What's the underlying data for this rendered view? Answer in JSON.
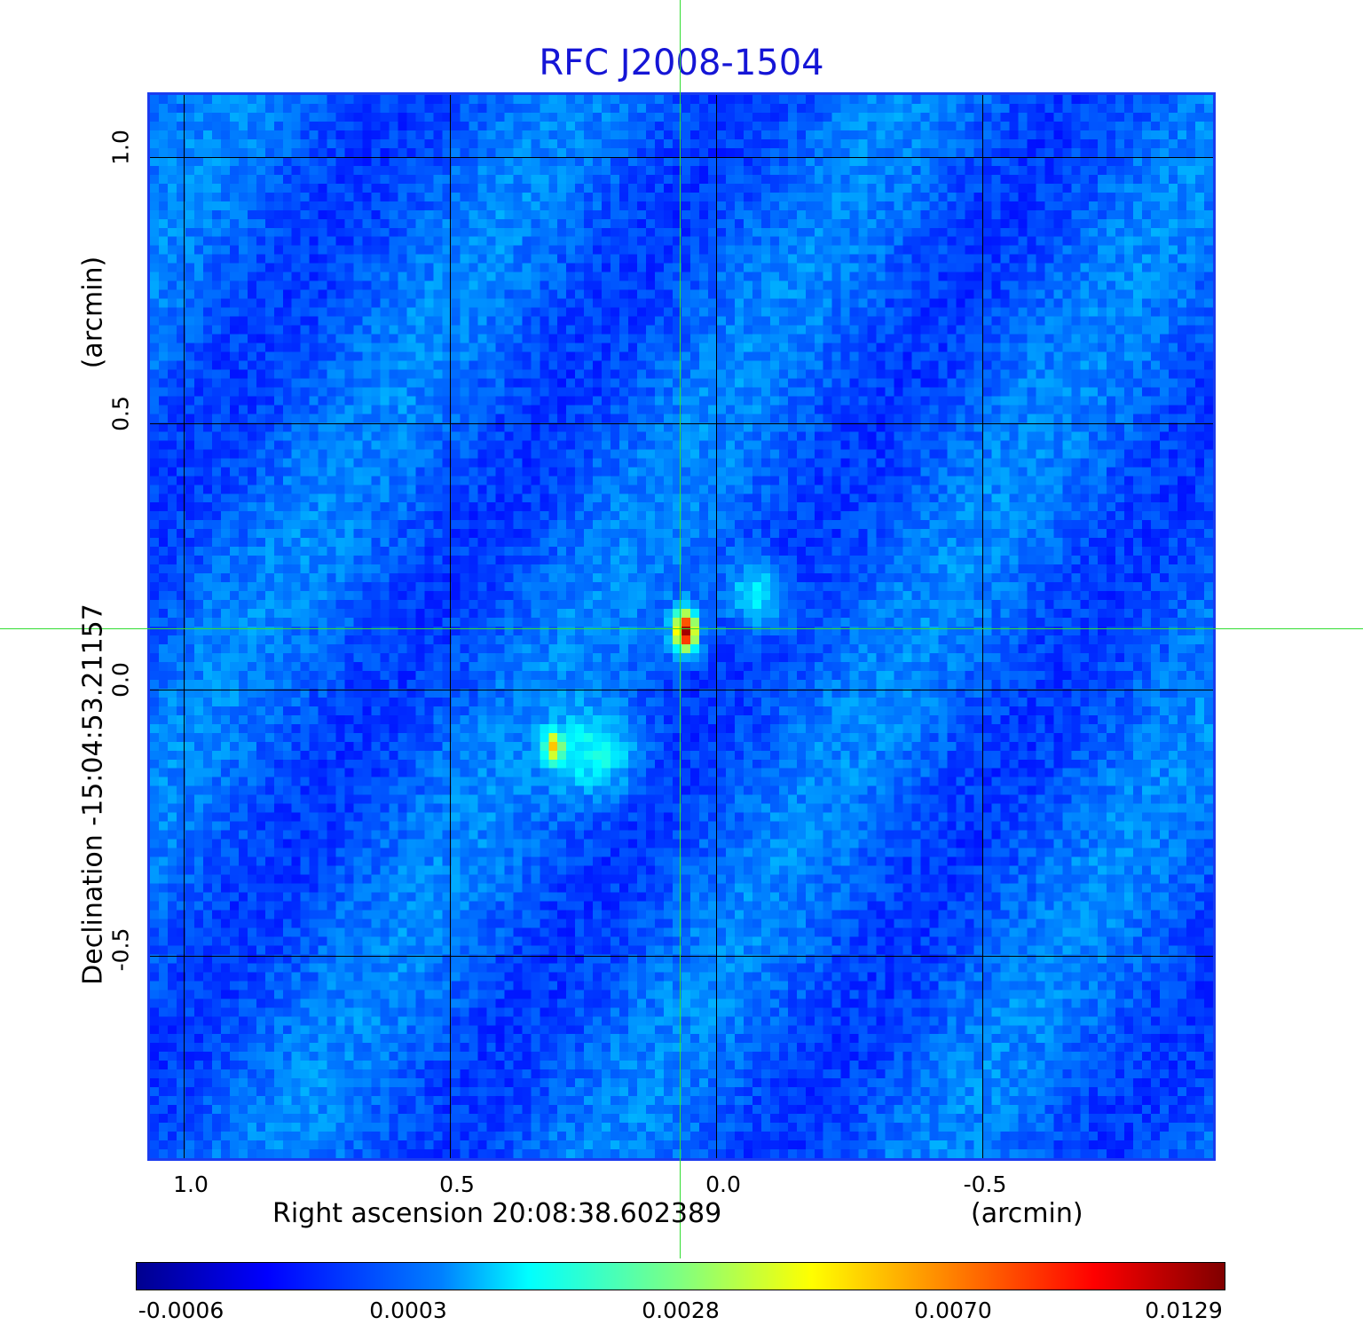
{
  "title": "RFC J2008-1504",
  "x_axis": {
    "label": "Right ascension  20:08:38.602389",
    "unit": "(arcmin)",
    "ticks": [
      "1.0",
      "0.5",
      "0.0",
      "-0.5"
    ]
  },
  "y_axis": {
    "label": "Declination  -15:04:53.21157",
    "unit": "(arcmin)",
    "ticks": [
      "1.0",
      "0.5",
      "0.0",
      "-0.5"
    ]
  },
  "colorbar": {
    "colormap": "jet",
    "ticks": [
      "-0.0006",
      "0.0003",
      "0.0028",
      "0.0070",
      "0.0129"
    ]
  },
  "colors": {
    "title": "#1515d6",
    "frame": "#1a3cf0",
    "crosshair": "#33dd33",
    "grid": "#000000"
  }
}
